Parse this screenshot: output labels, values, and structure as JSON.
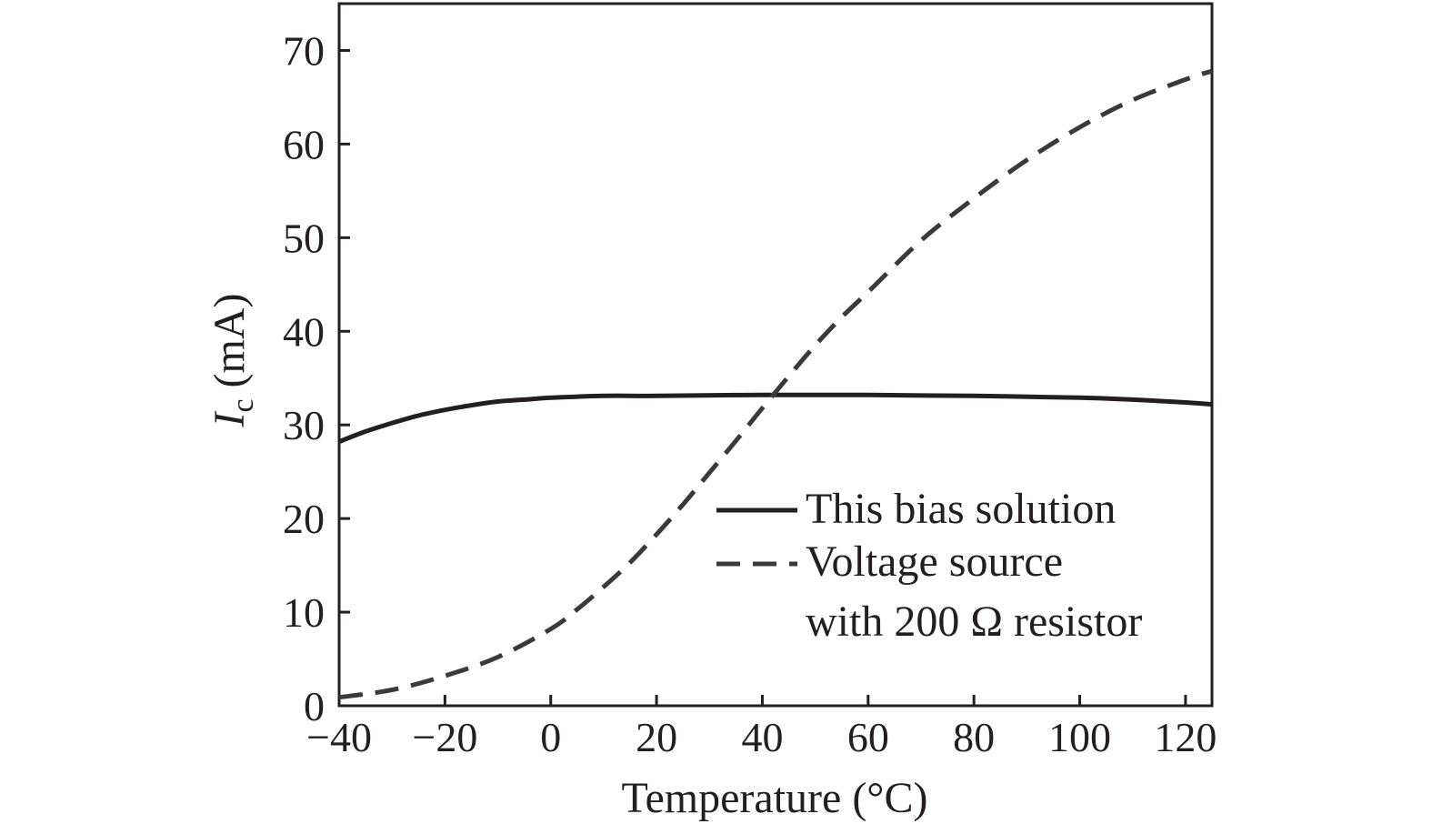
{
  "chart_data": {
    "type": "line",
    "title": "",
    "xlabel": "Temperature (°C)",
    "ylabel": {
      "symbol": "I",
      "subscript": "c",
      "unit": " (mA)"
    },
    "xlim": [
      -40,
      125
    ],
    "ylim": [
      0,
      75
    ],
    "x_ticks": [
      -40,
      -20,
      0,
      20,
      40,
      60,
      80,
      100,
      120
    ],
    "x_tick_labels": [
      "−40",
      "−20",
      "0",
      "20",
      "40",
      "60",
      "80",
      "100",
      "120"
    ],
    "y_ticks": [
      0,
      10,
      20,
      30,
      40,
      50,
      60,
      70
    ],
    "y_tick_labels": [
      "0",
      "10",
      "20",
      "30",
      "40",
      "50",
      "60",
      "70"
    ],
    "grid": false,
    "legend_position": "lower-right",
    "series": [
      {
        "name": "This bias solution",
        "style": "solid",
        "color": "#231f20",
        "x": [
          -40,
          -35,
          -30,
          -25,
          -20,
          -15,
          -10,
          -5,
          0,
          10,
          20,
          40,
          60,
          80,
          100,
          110,
          120,
          125
        ],
        "y": [
          28.2,
          29.3,
          30.2,
          31.0,
          31.6,
          32.1,
          32.5,
          32.7,
          32.9,
          33.1,
          33.1,
          33.2,
          33.2,
          33.1,
          32.9,
          32.7,
          32.4,
          32.2
        ]
      },
      {
        "name": "Voltage source with 200 Ω resistor",
        "legend_lines": [
          "Voltage source",
          "with 200 Ω resistor"
        ],
        "style": "dashed",
        "color": "#3a3a3a",
        "x": [
          -40,
          -30,
          -20,
          -10,
          0,
          5,
          10,
          15,
          20,
          25,
          30,
          35,
          40,
          45,
          50,
          55,
          60,
          70,
          80,
          90,
          100,
          110,
          120,
          125
        ],
        "y": [
          0.9,
          1.7,
          3.2,
          5.2,
          8.2,
          10.3,
          12.7,
          15.3,
          18.3,
          21.5,
          24.9,
          28.3,
          31.8,
          35.2,
          38.5,
          41.5,
          44.2,
          49.7,
          54.2,
          58.3,
          61.8,
          64.7,
          66.9,
          67.8
        ]
      }
    ]
  }
}
